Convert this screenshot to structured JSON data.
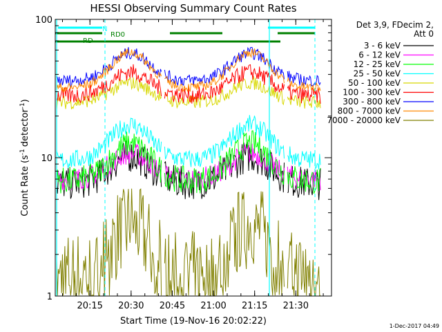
{
  "chart_data": {
    "type": "line",
    "title": "HESSI Observing Summary Count Rates",
    "xlabel": "Start Time (19-Nov-16 20:02:22)",
    "ylabel": "Count Rate (s",
    "ylabel_sup": "-1",
    "ylabel_tail": "detector",
    "ylabel_sup2": "-1",
    "ylabel_close": ")",
    "yscale": "log",
    "ylim": [
      1,
      100
    ],
    "y_ticks": [
      {
        "v": 1,
        "label": "1"
      },
      {
        "v": 10,
        "label": "10"
      },
      {
        "v": 100,
        "label": "100"
      }
    ],
    "xlim": [
      "20:02:22",
      "21:43:00"
    ],
    "x_ticks": [
      "20:15",
      "20:30",
      "20:45",
      "21:00",
      "21:15",
      "21:30"
    ],
    "legend": {
      "placement": "right",
      "header_line1": "Det 3,9, FDecim 2,",
      "header_line2": "Att 0",
      "entries": [
        {
          "label": "3 - 6 keV",
          "color": "#000000"
        },
        {
          "label": "6 - 12 keV",
          "color": "#ff00ff"
        },
        {
          "label": "12 - 25 keV",
          "color": "#00ff00"
        },
        {
          "label": "25 - 50 keV",
          "color": "#00ffff"
        },
        {
          "label": "50 - 100 keV",
          "color": "#d8d800"
        },
        {
          "label": "100 - 300 keV",
          "color": "#ff0000"
        },
        {
          "label": "300 - 800 keV",
          "color": "#0000ff"
        },
        {
          "label": "800 - 7000 keV",
          "color": "#ff8800"
        },
        {
          "label": "7000 - 20000 keV",
          "color": "#808000"
        }
      ]
    },
    "flags": [
      {
        "label": "N",
        "color": "#00ffff"
      },
      {
        "label": "RD0",
        "color": "#008000"
      },
      {
        "label": "RD",
        "color": "#008000"
      }
    ],
    "timestamp": "1-Dec-2017 04:49"
  }
}
